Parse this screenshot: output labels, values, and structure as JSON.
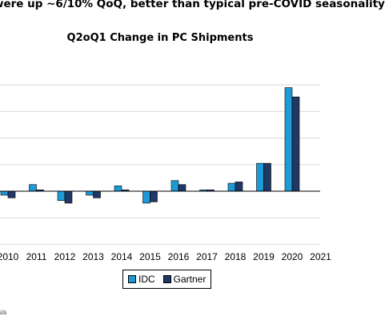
{
  "headline": "were up ~6/10% QoQ, better than typical pre-COVID seasonality",
  "source_fragment": "ysis",
  "chart_data": {
    "type": "bar",
    "title": "Q2oQ1 Change in PC Shipments",
    "categories": [
      "2010",
      "2011",
      "2012",
      "2013",
      "2014",
      "2015",
      "2016",
      "2017",
      "2018",
      "2019",
      "2020",
      "2021"
    ],
    "series": [
      {
        "name": "IDC",
        "color": "#1E9AD6",
        "values": [
          -1.5,
          2.5,
          -3.5,
          -1.5,
          2.0,
          -4.5,
          4.0,
          0.5,
          3.0,
          10.5,
          39.0,
          null
        ]
      },
      {
        "name": "Gartner",
        "color": "#1F3864",
        "values": [
          -2.5,
          0.5,
          -4.5,
          -2.5,
          0.5,
          -4.0,
          2.5,
          0.5,
          3.5,
          10.5,
          35.5,
          null
        ]
      }
    ],
    "ylim": [
      -20,
      40
    ],
    "y_grid_step": 10,
    "grid": true,
    "legend_position": "bottom-center",
    "xlabel": "",
    "ylabel": ""
  }
}
